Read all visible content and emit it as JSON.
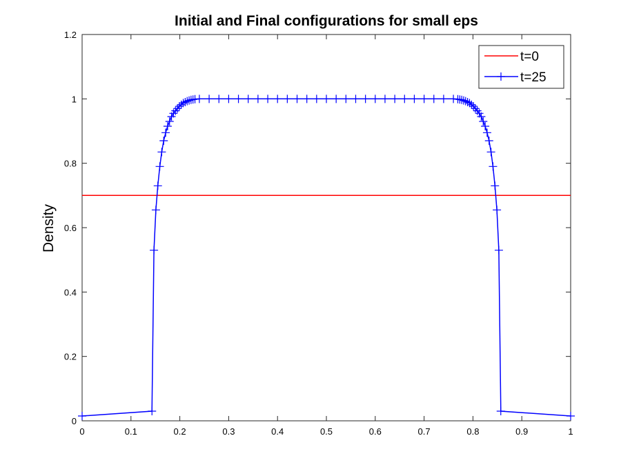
{
  "chart_data": {
    "type": "line",
    "title": "Initial and Final configurations for small eps",
    "xlabel": "",
    "ylabel": "Density",
    "xlim": [
      0,
      1
    ],
    "ylim": [
      0,
      1.2
    ],
    "xticks": [
      0,
      0.1,
      0.2,
      0.3,
      0.4,
      0.5,
      0.6,
      0.7,
      0.8,
      0.9,
      1
    ],
    "xtick_labels": [
      "0",
      "0.1",
      "0.2",
      "0.3",
      "0.4",
      "0.5",
      "0.6",
      "0.7",
      "0.8",
      "0.9",
      "1"
    ],
    "yticks": [
      0,
      0.2,
      0.4,
      0.6,
      0.8,
      1,
      1.2
    ],
    "ytick_labels": [
      "0",
      "0.2",
      "0.4",
      "0.6",
      "0.8",
      "1",
      "1.2"
    ],
    "grid": false,
    "legend_position": "top-right",
    "series": [
      {
        "name": "t=0",
        "color": "#ff0000",
        "marker": "none",
        "x": [
          0,
          1
        ],
        "y": [
          0.7,
          0.7
        ]
      },
      {
        "name": "t=25",
        "color": "#0000ff",
        "marker": "plus",
        "x": [
          0,
          0.143,
          0.147,
          0.151,
          0.155,
          0.159,
          0.163,
          0.167,
          0.171,
          0.175,
          0.179,
          0.183,
          0.187,
          0.191,
          0.195,
          0.199,
          0.203,
          0.207,
          0.211,
          0.215,
          0.219,
          0.223,
          0.227,
          0.231,
          0.24,
          0.26,
          0.28,
          0.3,
          0.32,
          0.34,
          0.36,
          0.38,
          0.4,
          0.42,
          0.44,
          0.46,
          0.48,
          0.5,
          0.52,
          0.54,
          0.56,
          0.58,
          0.6,
          0.62,
          0.64,
          0.66,
          0.68,
          0.7,
          0.72,
          0.74,
          0.76,
          0.769,
          0.773,
          0.777,
          0.781,
          0.785,
          0.789,
          0.793,
          0.797,
          0.801,
          0.805,
          0.809,
          0.813,
          0.817,
          0.821,
          0.825,
          0.829,
          0.833,
          0.837,
          0.841,
          0.845,
          0.849,
          0.853,
          0.857,
          1
        ],
        "y": [
          0.015,
          0.03,
          0.53,
          0.655,
          0.73,
          0.79,
          0.835,
          0.87,
          0.895,
          0.915,
          0.93,
          0.945,
          0.955,
          0.963,
          0.97,
          0.977,
          0.982,
          0.987,
          0.99,
          0.993,
          0.995,
          0.997,
          0.998,
          0.999,
          1,
          1,
          1,
          1,
          1,
          1,
          1,
          1,
          1,
          1,
          1,
          1,
          1,
          1,
          1,
          1,
          1,
          1,
          1,
          1,
          1,
          1,
          1,
          1,
          1,
          1,
          1,
          0.999,
          0.998,
          0.997,
          0.995,
          0.993,
          0.99,
          0.987,
          0.982,
          0.977,
          0.97,
          0.963,
          0.955,
          0.945,
          0.93,
          0.915,
          0.895,
          0.87,
          0.835,
          0.79,
          0.73,
          0.655,
          0.53,
          0.03,
          0.015
        ]
      }
    ]
  }
}
